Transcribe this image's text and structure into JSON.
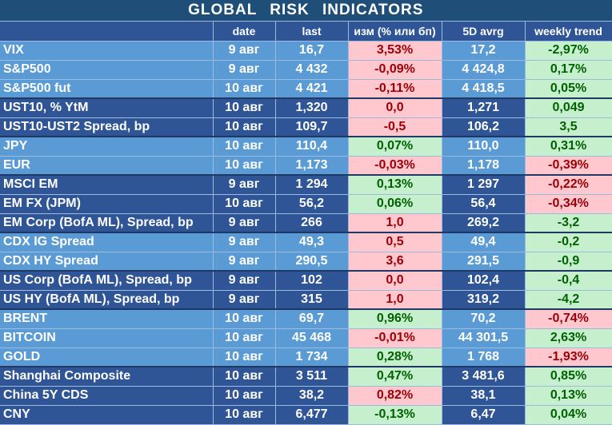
{
  "title": "GLOBAL  RISK  INDICATORS",
  "columns": [
    "",
    "date",
    "last",
    "изм (% или бп)",
    "5D avrg",
    "weekly trend"
  ],
  "colors": {
    "header_blue": "#1f4e79",
    "row_light": "#5b9bd5",
    "row_dark": "#2f5597",
    "positive_bg": "#c6efce",
    "positive_text": "#006100",
    "negative_bg": "#ffc7ce",
    "negative_text": "#9c0006"
  },
  "rows": [
    {
      "name": "VIX",
      "date": "9 авг",
      "last": "16,7",
      "chg": "3,53%",
      "chg_state": "neg",
      "avg": "17,2",
      "trend": "-2,97%",
      "trend_state": "pos",
      "group": 1
    },
    {
      "name": "S&P500",
      "date": "9 авг",
      "last": "4 432",
      "chg": "-0,09%",
      "chg_state": "neg",
      "avg": "4 424,8",
      "trend": "0,17%",
      "trend_state": "pos",
      "group": 1
    },
    {
      "name": "S&P500 fut",
      "date": "10 авг",
      "last": "4 421",
      "chg": "-0,11%",
      "chg_state": "neg",
      "avg": "4 418,5",
      "trend": "0,05%",
      "trend_state": "pos",
      "group": 1
    },
    {
      "name": "UST10, % YtM",
      "date": "10 авг",
      "last": "1,320",
      "chg": "0,0",
      "chg_state": "neg",
      "avg": "1,271",
      "trend": "0,049",
      "trend_state": "pos",
      "group": 2
    },
    {
      "name": "UST10-UST2 Spread, bp",
      "date": "10 авг",
      "last": "109,7",
      "chg": "-0,5",
      "chg_state": "neg",
      "avg": "106,2",
      "trend": "3,5",
      "trend_state": "pos",
      "group": 2
    },
    {
      "name": "JPY",
      "date": "10 авг",
      "last": "110,4",
      "chg": "0,07%",
      "chg_state": "pos",
      "avg": "110,0",
      "trend": "0,31%",
      "trend_state": "pos",
      "group": 3
    },
    {
      "name": "EUR",
      "date": "10 авг",
      "last": "1,173",
      "chg": "-0,03%",
      "chg_state": "neg",
      "avg": "1,178",
      "trend": "-0,39%",
      "trend_state": "neg",
      "group": 3
    },
    {
      "name": "MSCI EM",
      "date": "9 авг",
      "last": "1 294",
      "chg": "0,13%",
      "chg_state": "pos",
      "avg": "1 297",
      "trend": "-0,22%",
      "trend_state": "neg",
      "group": 4
    },
    {
      "name": "EM FX (JPM)",
      "date": "10 авг",
      "last": "56,2",
      "chg": "0,06%",
      "chg_state": "pos",
      "avg": "56,4",
      "trend": "-0,34%",
      "trend_state": "neg",
      "group": 4
    },
    {
      "name": "EM Corp (BofA ML), Spread, bp",
      "date": "9 авг",
      "last": "266",
      "chg": "1,0",
      "chg_state": "neg",
      "avg": "269,2",
      "trend": "-3,2",
      "trend_state": "pos",
      "group": 4
    },
    {
      "name": "CDX IG Spread",
      "date": "9 авг",
      "last": "49,3",
      "chg": "0,5",
      "chg_state": "neg",
      "avg": "49,4",
      "trend": "-0,2",
      "trend_state": "pos",
      "group": 5
    },
    {
      "name": "CDX HY Spread",
      "date": "9 авг",
      "last": "290,5",
      "chg": "3,6",
      "chg_state": "neg",
      "avg": "291,5",
      "trend": "-0,9",
      "trend_state": "pos",
      "group": 5
    },
    {
      "name": "US Corp (BofA ML), Spread, bp",
      "date": "9 авг",
      "last": "102",
      "chg": "0,0",
      "chg_state": "neg",
      "avg": "102,4",
      "trend": "-0,4",
      "trend_state": "pos",
      "group": 6
    },
    {
      "name": "US HY (BofA ML), Spread, bp",
      "date": "9 авг",
      "last": "315",
      "chg": "1,0",
      "chg_state": "neg",
      "avg": "319,2",
      "trend": "-4,2",
      "trend_state": "pos",
      "group": 6
    },
    {
      "name": "BRENT",
      "date": "10 авг",
      "last": "69,7",
      "chg": "0,96%",
      "chg_state": "pos",
      "avg": "70,2",
      "trend": "-0,74%",
      "trend_state": "neg",
      "group": 7
    },
    {
      "name": "BITCOIN",
      "date": "10 авг",
      "last": "45 468",
      "chg": "-0,01%",
      "chg_state": "neg",
      "avg": "44 301,5",
      "trend": "2,63%",
      "trend_state": "pos",
      "group": 7
    },
    {
      "name": "GOLD",
      "date": "10 авг",
      "last": "1 734",
      "chg": "0,28%",
      "chg_state": "pos",
      "avg": "1 768",
      "trend": "-1,93%",
      "trend_state": "neg",
      "group": 7
    },
    {
      "name": "Shanghai Composite",
      "date": "10 авг",
      "last": "3 511",
      "chg": "0,47%",
      "chg_state": "pos",
      "avg": "3 481,6",
      "trend": "0,85%",
      "trend_state": "pos",
      "group": 8
    },
    {
      "name": "China 5Y CDS",
      "date": "10 авг",
      "last": "38,2",
      "chg": "0,82%",
      "chg_state": "neg",
      "avg": "38,1",
      "trend": "0,13%",
      "trend_state": "pos",
      "group": 8
    },
    {
      "name": "CNY",
      "date": "10 авг",
      "last": "6,477",
      "chg": "-0,13%",
      "chg_state": "pos",
      "avg": "6,47",
      "trend": "0,04%",
      "trend_state": "pos",
      "group": 8
    }
  ]
}
